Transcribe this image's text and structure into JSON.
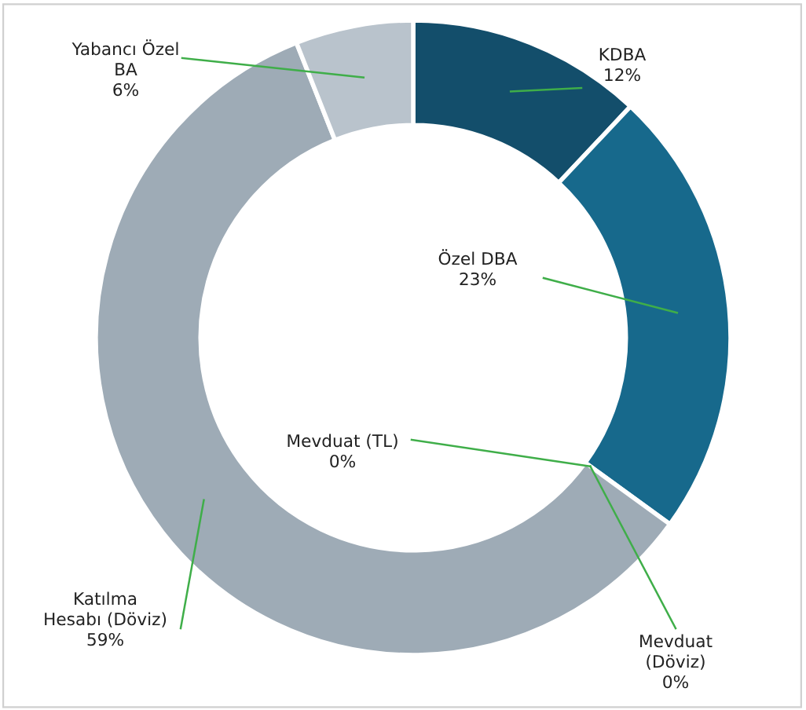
{
  "chart_data": {
    "type": "donut",
    "categories": [
      "KDBA",
      "Özel DBA",
      "Mevduat (TL)",
      "Mevduat (Döviz)",
      "Katılma Hesabı (Döviz)",
      "Yabancı Özel BA"
    ],
    "values": [
      12,
      23,
      0,
      0,
      59,
      6
    ],
    "colors": [
      "#134e6b",
      "#17698c",
      "#5f7f94",
      "#7b8f9e",
      "#9eabb6",
      "#b9c3cc"
    ],
    "value_labels": [
      "12%",
      "23%",
      "0%",
      "0%",
      "59%",
      "6%"
    ],
    "legend": false
  }
}
